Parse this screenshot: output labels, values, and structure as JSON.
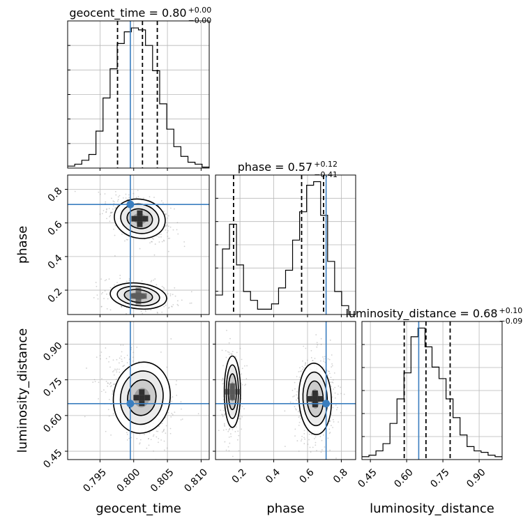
{
  "chart_data": {
    "type": "corner",
    "parameters": [
      "geocent_time",
      "phase",
      "luminosity_distance"
    ],
    "truths": {
      "geocent_time": 0.7995,
      "phase": 0.71,
      "luminosity_distance": 0.65
    },
    "truth_color": "#3a7ebf",
    "titles": [
      {
        "param": "geocent_time",
        "text": "geocent_time = 0.80",
        "sup": "+0.00",
        "sub": "−0.00"
      },
      {
        "param": "phase",
        "text": "phase = 0.57",
        "sup": "+0.12",
        "sub": "−0.41"
      },
      {
        "param": "luminosity_distance",
        "text": "luminosity_distance = 0.68",
        "sup": "+0.10",
        "sub": "−0.09"
      }
    ],
    "axes": {
      "geocent_time": {
        "range": [
          0.7902,
          0.8112
        ],
        "ticks": [
          0.795,
          0.8,
          0.805,
          0.81
        ],
        "tick_labels": [
          "0.795",
          "0.800",
          "0.805",
          "0.810"
        ]
      },
      "phase": {
        "range": [
          0.055,
          0.885
        ],
        "ticks": [
          0.2,
          0.4,
          0.6,
          0.8
        ],
        "tick_labels": [
          "0.2",
          "0.4",
          "0.6",
          "0.8"
        ]
      },
      "luminosity_distance": {
        "range": [
          0.415,
          0.995
        ],
        "ticks": [
          0.45,
          0.6,
          0.75,
          0.9
        ],
        "tick_labels": [
          "0.45",
          "0.60",
          "0.75",
          "0.90"
        ]
      }
    },
    "axis_labels": {
      "x": [
        "geocent_time",
        "phase",
        "luminosity_distance"
      ],
      "y": [
        "phase",
        "luminosity_distance"
      ]
    },
    "histograms": {
      "geocent_time": {
        "edges": [
          0.7902,
          0.79125,
          0.7923,
          0.79335,
          0.7944,
          0.79545,
          0.7965,
          0.79755,
          0.7986,
          0.79965,
          0.8007,
          0.80175,
          0.8028,
          0.80385,
          0.8049,
          0.80595,
          0.807,
          0.80805,
          0.8091,
          0.81015,
          0.8112
        ],
        "counts": [
          2,
          4,
          8,
          14,
          38,
          72,
          102,
          128,
          140,
          144,
          142,
          126,
          100,
          66,
          40,
          22,
          12,
          6,
          4,
          1
        ],
        "quantiles": [
          0.7976,
          0.8013,
          0.8035
        ]
      },
      "phase": {
        "edges": [
          0.055,
          0.0965,
          0.138,
          0.1795,
          0.221,
          0.2625,
          0.304,
          0.3455,
          0.387,
          0.4285,
          0.47,
          0.5115,
          0.553,
          0.5945,
          0.636,
          0.6775,
          0.719,
          0.7605,
          0.802,
          0.8435,
          0.885
        ],
        "counts": [
          22,
          74,
          102,
          56,
          26,
          16,
          6,
          6,
          12,
          30,
          50,
          84,
          116,
          146,
          150,
          112,
          60,
          26,
          10,
          0
        ],
        "quantiles": [
          0.162,
          0.565,
          0.695
        ]
      },
      "luminosity_distance": {
        "edges": [
          0.415,
          0.444,
          0.473,
          0.502,
          0.531,
          0.56,
          0.589,
          0.618,
          0.647,
          0.676,
          0.705,
          0.734,
          0.763,
          0.792,
          0.821,
          0.85,
          0.879,
          0.908,
          0.937,
          0.966,
          0.995
        ],
        "counts": [
          4,
          6,
          12,
          22,
          50,
          84,
          120,
          170,
          182,
          156,
          128,
          112,
          84,
          58,
          34,
          18,
          12,
          10,
          6,
          4
        ],
        "quantiles": [
          0.59,
          0.68,
          0.78
        ]
      }
    },
    "contour_panels": [
      {
        "x": "geocent_time",
        "y": "phase",
        "modes": [
          {
            "cx": 0.8009,
            "cy": 0.625,
            "sx": 0.0019,
            "sy": 0.058,
            "rho": -0.45,
            "w": 1.0
          },
          {
            "cx": 0.8007,
            "cy": 0.165,
            "sx": 0.0021,
            "sy": 0.038,
            "rho": -0.25,
            "w": 0.55
          }
        ]
      },
      {
        "x": "geocent_time",
        "y": "luminosity_distance",
        "modes": [
          {
            "cx": 0.8012,
            "cy": 0.675,
            "sx": 0.0021,
            "sy": 0.075,
            "rho": -0.35,
            "w": 1.0
          }
        ]
      },
      {
        "x": "phase",
        "y": "luminosity_distance",
        "modes": [
          {
            "cx": 0.645,
            "cy": 0.67,
            "sx": 0.048,
            "sy": 0.075,
            "rho": 0.1,
            "w": 1.0
          },
          {
            "cx": 0.155,
            "cy": 0.7,
            "sx": 0.024,
            "sy": 0.075,
            "rho": 0.0,
            "w": 0.6
          }
        ]
      }
    ],
    "contour_levels": [
      "1σ",
      "1.5σ",
      "2σ"
    ],
    "grid": true
  }
}
